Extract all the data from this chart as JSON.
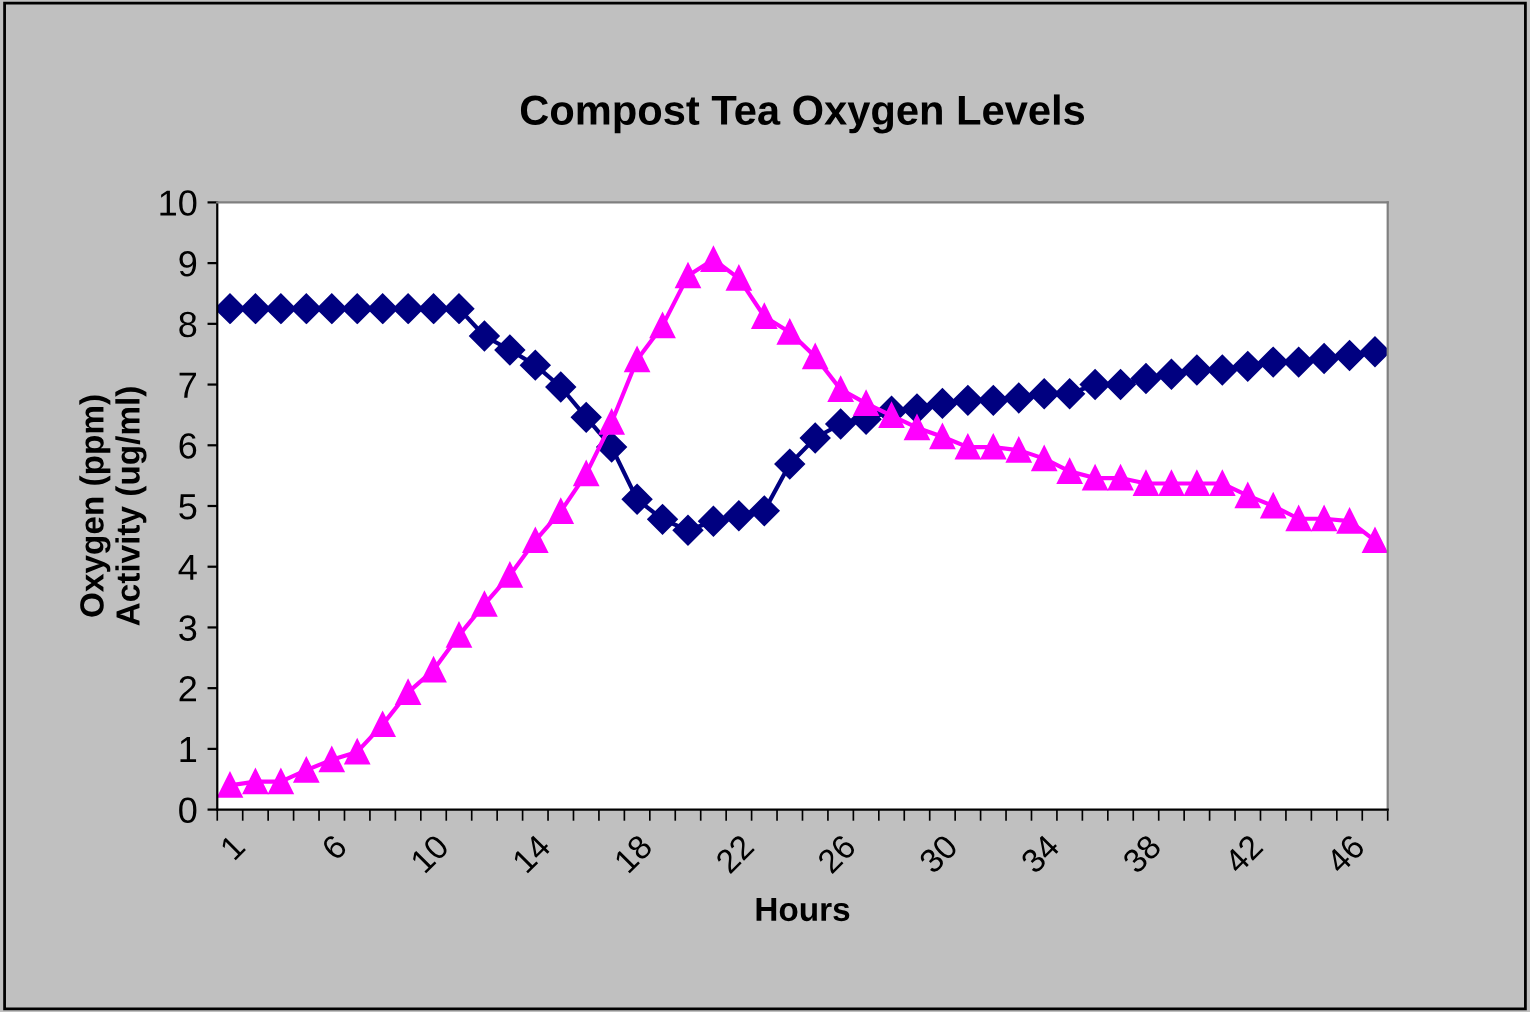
{
  "chart_data": {
    "type": "line",
    "title": "Compost Tea Oxygen Levels",
    "xlabel": "Hours",
    "ylabel": "Oxygen (ppm)\nActivity (ug/ml)",
    "categories": [
      "1",
      null,
      null,
      null,
      "6",
      null,
      null,
      null,
      "10",
      null,
      null,
      null,
      "14",
      null,
      null,
      null,
      "18",
      null,
      null,
      null,
      "22",
      null,
      null,
      null,
      "26",
      null,
      null,
      null,
      "30",
      null,
      null,
      null,
      "34",
      null,
      null,
      null,
      "38",
      null,
      null,
      null,
      "42",
      null,
      null,
      null,
      "46",
      null
    ],
    "ylim": [
      0,
      10
    ],
    "yticks": [
      0,
      1,
      2,
      3,
      4,
      5,
      6,
      7,
      8,
      9,
      10
    ],
    "grid": false,
    "line_style": "solid",
    "series": [
      {
        "color": "#000080",
        "marker": "diamond",
        "values": [
          8.25,
          8.25,
          8.25,
          8.25,
          8.25,
          8.25,
          8.25,
          8.25,
          8.25,
          8.25,
          7.8,
          7.57,
          7.32,
          6.96,
          6.46,
          5.97,
          5.11,
          4.78,
          4.6,
          4.75,
          4.84,
          4.92,
          5.69,
          6.12,
          6.35,
          6.43,
          6.56,
          6.6,
          6.69,
          6.74,
          6.74,
          6.78,
          6.85,
          6.85,
          7.0,
          7.0,
          7.1,
          7.17,
          7.24,
          7.24,
          7.3,
          7.37,
          7.37,
          7.43,
          7.48,
          7.54
        ]
      },
      {
        "color": "#ff00ff",
        "marker": "triangle",
        "values": [
          0.4,
          0.46,
          0.46,
          0.65,
          0.82,
          0.95,
          1.4,
          1.93,
          2.3,
          2.87,
          3.38,
          3.86,
          4.43,
          4.91,
          5.53,
          6.38,
          7.41,
          7.97,
          8.79,
          9.06,
          8.75,
          8.12,
          7.86,
          7.46,
          6.92,
          6.69,
          6.49,
          6.29,
          6.14,
          5.97,
          5.97,
          5.92,
          5.78,
          5.57,
          5.46,
          5.46,
          5.37,
          5.37,
          5.37,
          5.37,
          5.17,
          5.0,
          4.79,
          4.79,
          4.75,
          4.43
        ]
      }
    ]
  }
}
